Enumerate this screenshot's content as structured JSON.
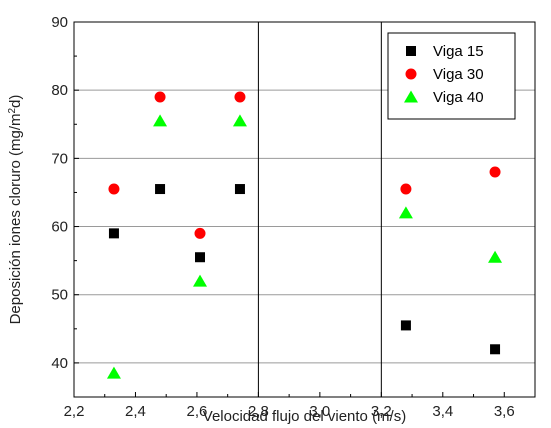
{
  "chart_data": {
    "type": "scatter",
    "xlabel": "Velocidad flujo del viento (m/s)",
    "ylabel_main": "Deposición iones cloruro (mg/m",
    "ylabel_sup": "2",
    "ylabel_end": "d)",
    "xlim": [
      2.2,
      3.7
    ],
    "ylim": [
      35,
      90
    ],
    "x_ticks": [
      2.2,
      2.4,
      2.6,
      2.8,
      3.0,
      3.2,
      3.4,
      3.6
    ],
    "x_tick_labels": [
      "2,2",
      "2,4",
      "2,6",
      "2,8",
      "3,0",
      "3,2",
      "3,4",
      "3,6"
    ],
    "y_ticks": [
      40,
      50,
      60,
      70,
      80,
      90
    ],
    "y_tick_labels": [
      "40",
      "50",
      "60",
      "70",
      "80",
      "90"
    ],
    "grid": "horizontal",
    "vertical_lines": [
      2.8,
      3.2
    ],
    "legend_position": "top-right",
    "series": [
      {
        "name": "Viga 15",
        "marker": "square",
        "color": "#000000",
        "x": [
          2.33,
          2.48,
          2.61,
          2.74,
          3.28,
          3.57
        ],
        "y": [
          59,
          65.5,
          55.5,
          65.5,
          45.5,
          42
        ]
      },
      {
        "name": "Viga 30",
        "marker": "circle",
        "color": "#ff0000",
        "x": [
          2.33,
          2.48,
          2.61,
          2.74,
          3.28,
          3.57
        ],
        "y": [
          65.5,
          79,
          59,
          79,
          65.5,
          68
        ]
      },
      {
        "name": "Viga 40",
        "marker": "triangle",
        "color": "#00ff00",
        "x": [
          2.33,
          2.48,
          2.61,
          2.74,
          3.28,
          3.57
        ],
        "y": [
          38.5,
          75.5,
          52,
          75.5,
          62,
          55.5
        ]
      }
    ]
  }
}
